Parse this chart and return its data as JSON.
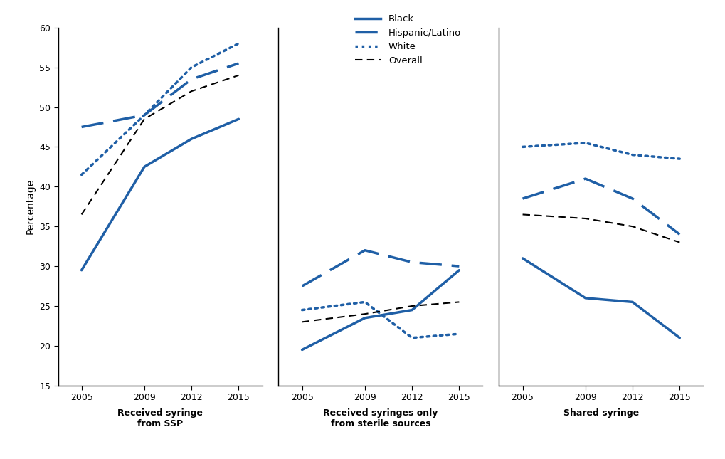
{
  "years": [
    2005,
    2009,
    2012,
    2015
  ],
  "panels": [
    {
      "title": "Received syringe\nfrom SSP",
      "black": [
        29.5,
        42.5,
        46.0,
        48.5
      ],
      "hispanic": [
        47.5,
        49.0,
        53.5,
        55.5
      ],
      "white": [
        41.5,
        49.0,
        55.0,
        58.0
      ],
      "overall": [
        36.5,
        48.5,
        52.0,
        54.0
      ]
    },
    {
      "title": "Received syringes only\nfrom sterile sources",
      "black": [
        19.5,
        23.5,
        24.5,
        29.5
      ],
      "hispanic": [
        27.5,
        32.0,
        30.5,
        30.0
      ],
      "white": [
        24.5,
        25.5,
        21.0,
        21.5
      ],
      "overall": [
        23.0,
        24.0,
        25.0,
        25.5
      ]
    },
    {
      "title": "Shared syringe",
      "black": [
        31.0,
        26.0,
        25.5,
        21.0
      ],
      "hispanic": [
        38.5,
        41.0,
        38.5,
        34.0
      ],
      "white": [
        45.0,
        45.5,
        44.0,
        43.5
      ],
      "overall": [
        36.5,
        36.0,
        35.0,
        33.0
      ]
    }
  ],
  "blue_color": "#1f5fa6",
  "black_color": "#000000",
  "ylabel": "Percentage",
  "ylim": [
    15,
    60
  ],
  "yticks": [
    15,
    20,
    25,
    30,
    35,
    40,
    45,
    50,
    55,
    60
  ],
  "legend_labels": [
    "Black",
    "Hispanic/Latino",
    "White",
    "Overall"
  ],
  "background_color": "#ffffff"
}
